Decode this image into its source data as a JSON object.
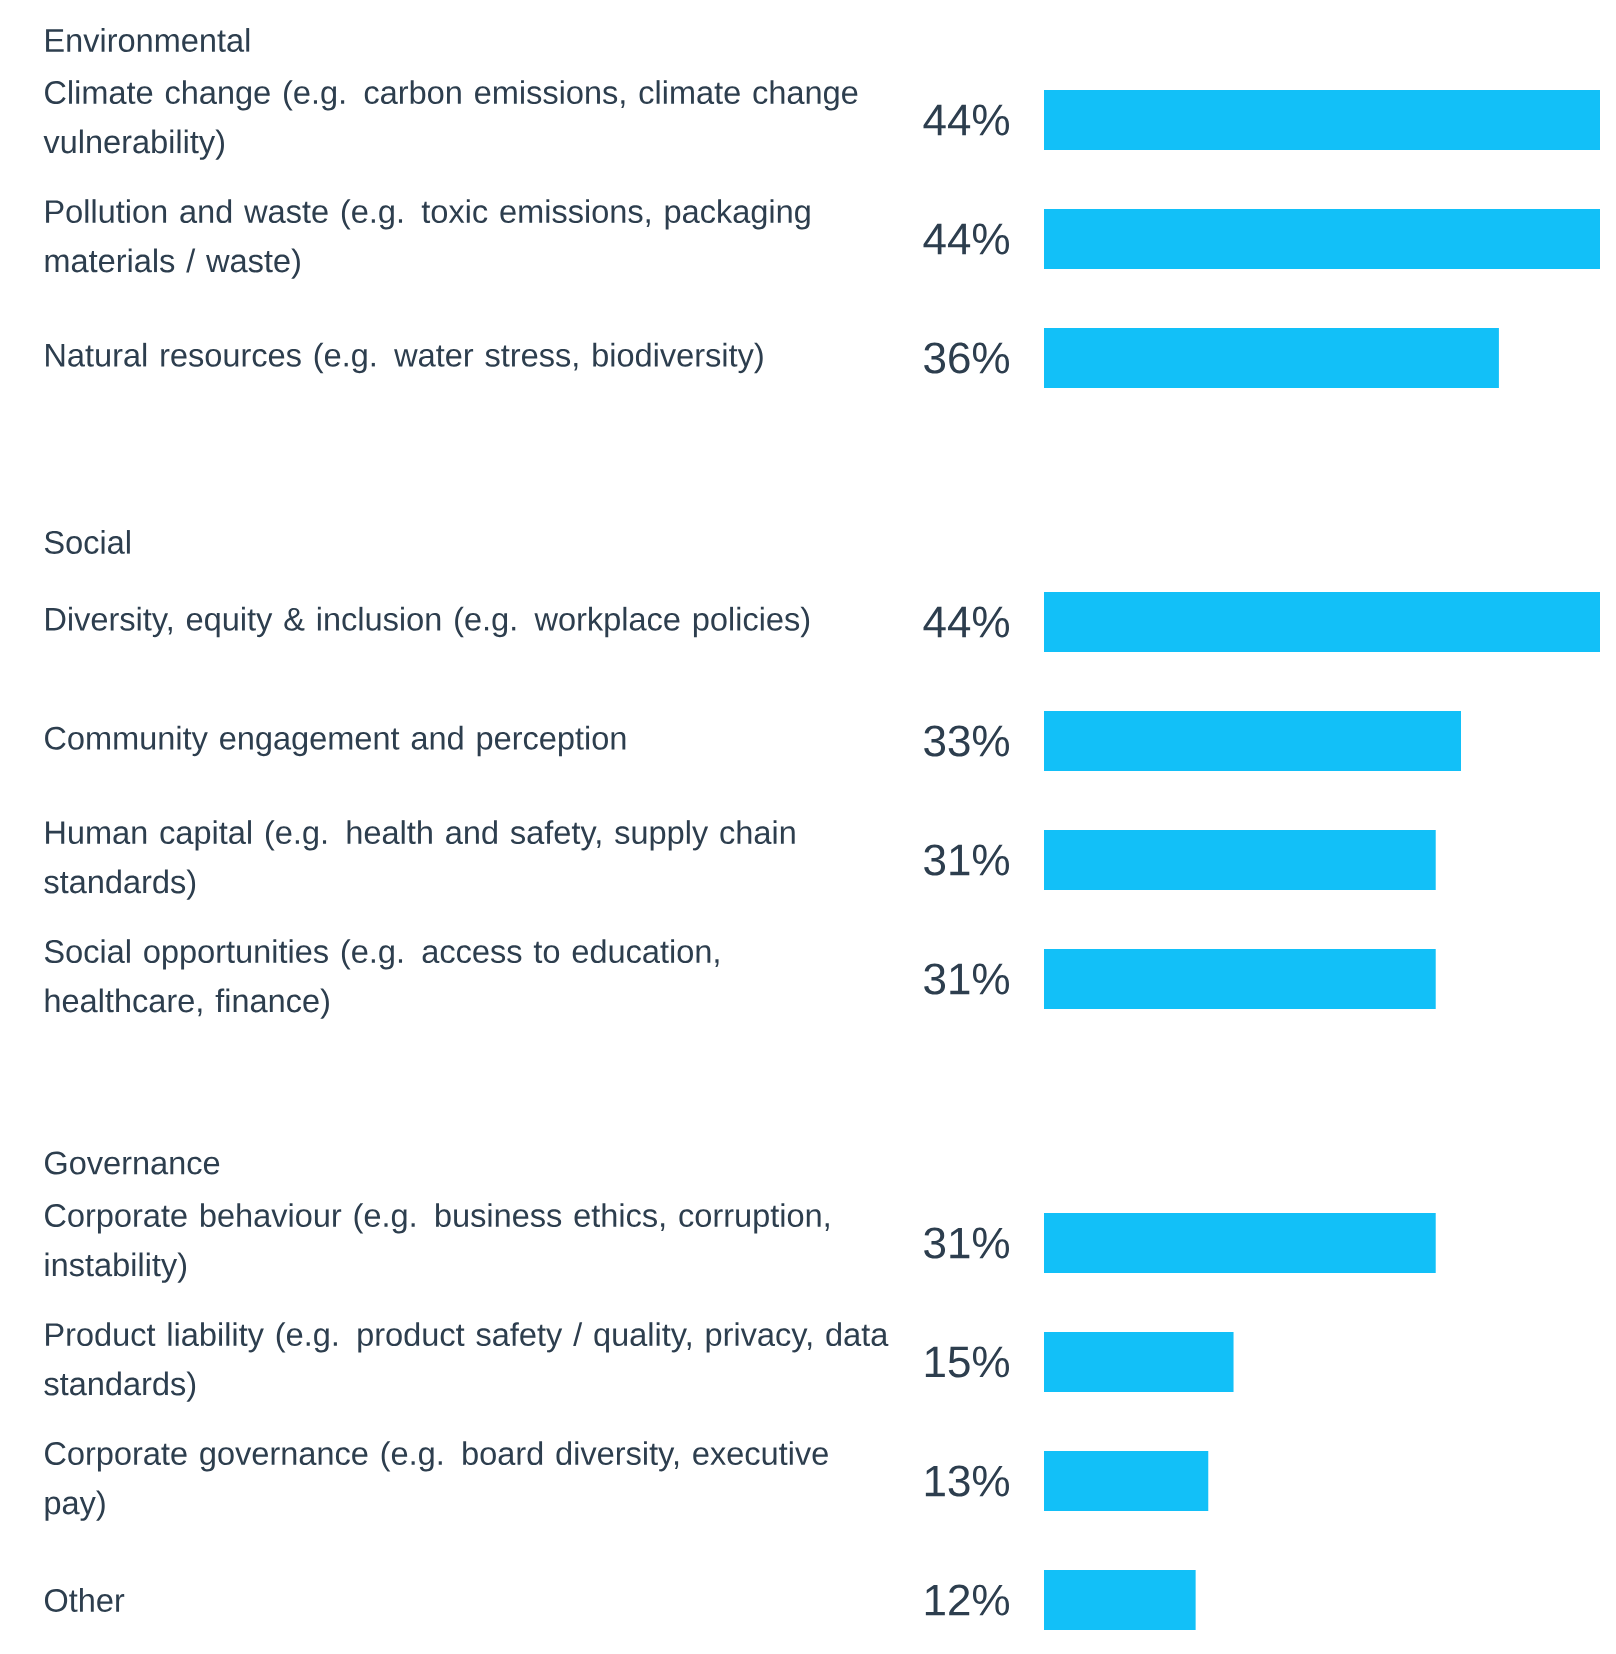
{
  "chart_data": {
    "type": "bar",
    "orientation": "horizontal",
    "color": "#12c0f8",
    "categories": [
      "Environmental",
      "Climate change (e.g. carbon emissions, climate change vulnerability)",
      "Pollution and waste (e.g. toxic emissions, packaging materials / waste)",
      "Natural resources (e.g. water stress, biodiversity)",
      "Social",
      "Diversity, equity & inclusion (e.g. workplace policies)",
      "Community engagement and perception",
      "Human capital (e.g. health and safety, supply chain standards)",
      "Social opportunities (e.g. access to education, healthcare, finance)",
      "Governance",
      "Corporate behaviour (e.g. business ethics, corruption, instability)",
      "Product liability (e.g. product safety / quality, privacy, data standards)",
      "Corporate governance (e.g. board diversity, executive pay)",
      "Other"
    ],
    "values": [
      null,
      44,
      44,
      36,
      null,
      44,
      33,
      31,
      31,
      null,
      31,
      15,
      13,
      12
    ],
    "value_labels": [
      null,
      "44%",
      "44%",
      "36%",
      null,
      "44%",
      "33%",
      "31%",
      "31%",
      null,
      "31%",
      "15%",
      "13%",
      "12%"
    ],
    "xlim": [
      0,
      44
    ],
    "tick_labels": "y"
  }
}
